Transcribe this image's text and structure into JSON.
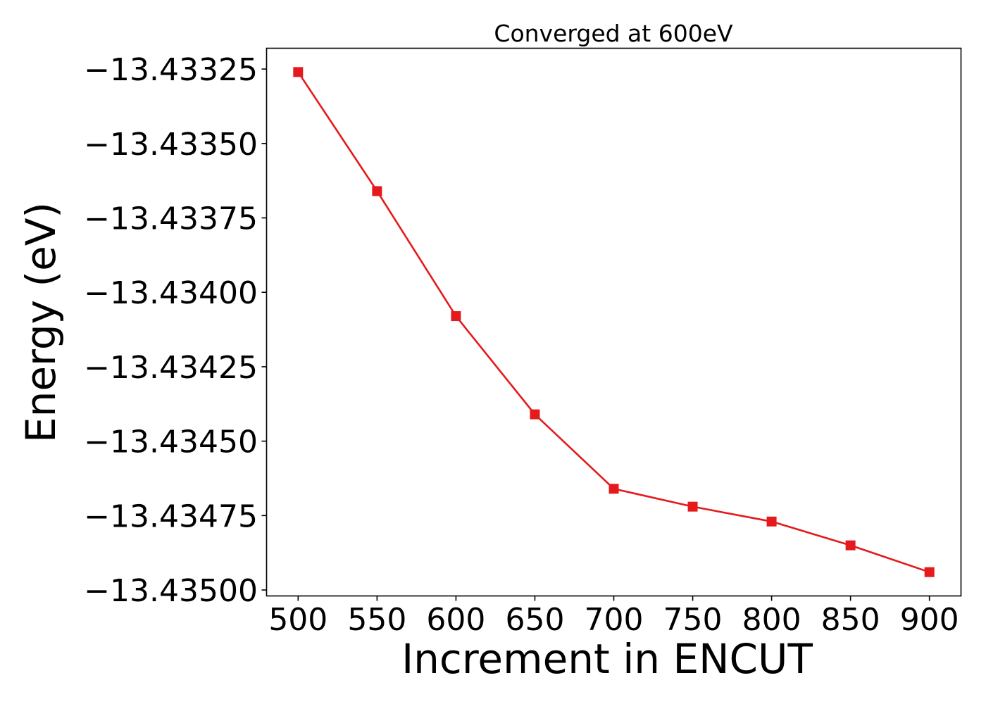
{
  "chart_data": {
    "type": "line",
    "title": "Converged at 600eV",
    "xlabel": "Increment in ENCUT",
    "ylabel": "Energy (eV)",
    "x": [
      500,
      550,
      600,
      650,
      700,
      750,
      800,
      850,
      900
    ],
    "series": [
      {
        "values": [
          -13.43326,
          -13.43366,
          -13.43408,
          -13.43441,
          -13.43466,
          -13.43472,
          -13.43477,
          -13.43485,
          -13.43494
        ],
        "color": "#e41a1c",
        "marker": "square"
      }
    ],
    "xticks": [
      500,
      550,
      600,
      650,
      700,
      750,
      800,
      850,
      900
    ],
    "xtick_labels": [
      "500",
      "550",
      "600",
      "650",
      "700",
      "750",
      "800",
      "850",
      "900"
    ],
    "yticks": [
      -13.43325,
      -13.4335,
      -13.43375,
      -13.434,
      -13.43425,
      -13.4345,
      -13.43475,
      -13.435
    ],
    "ytick_labels": [
      "−13.43325",
      "−13.43350",
      "−13.43375",
      "−13.43400",
      "−13.43425",
      "−13.43450",
      "−13.43475",
      "−13.43500"
    ],
    "xlim": [
      480,
      920
    ],
    "ylim": [
      -13.43502,
      -13.43318
    ],
    "grid": false,
    "legend": "none"
  }
}
